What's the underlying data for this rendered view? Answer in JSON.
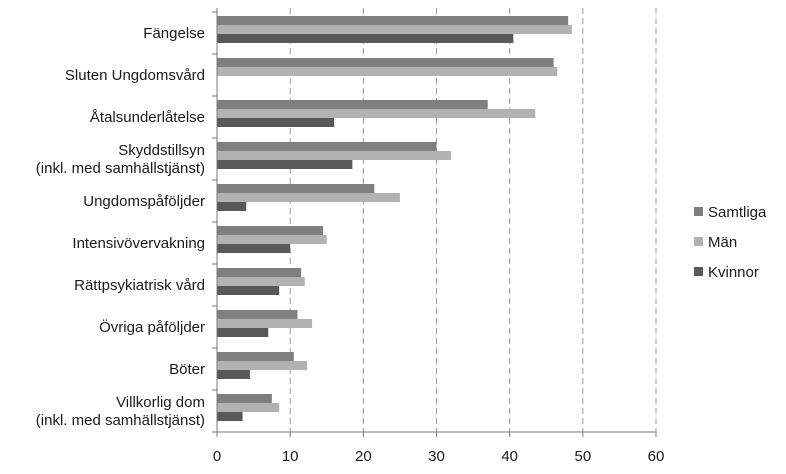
{
  "chart_data": {
    "type": "bar",
    "orientation": "horizontal",
    "categories": [
      [
        "Fängelse"
      ],
      [
        "Sluten Ungdomsvård"
      ],
      [
        "Åtalsunderlåtelse"
      ],
      [
        "Skyddstillsyn",
        "(inkl. med samhällstjänst)"
      ],
      [
        "Ungdomspåföljder"
      ],
      [
        "Intensivövervakning"
      ],
      [
        "Rättpsykiatrisk vård"
      ],
      [
        "Övriga påföljder"
      ],
      [
        "Böter"
      ],
      [
        "Villkorlig dom",
        "(inkl. med samhällstjänst)"
      ]
    ],
    "series": [
      {
        "name": "Samtliga",
        "color": "#7f7f7f",
        "values": [
          48,
          46,
          37,
          30,
          21.5,
          14.5,
          11.5,
          11,
          10.5,
          7.5
        ]
      },
      {
        "name": "Män",
        "color": "#b2b2b2",
        "values": [
          48.5,
          46.5,
          43.5,
          32,
          25,
          15,
          12,
          13,
          12.3,
          8.5
        ]
      },
      {
        "name": "Kvinnor",
        "color": "#595959",
        "values": [
          40.5,
          null,
          16,
          18.5,
          4,
          10,
          8.5,
          7,
          4.5,
          3.5
        ]
      }
    ],
    "xlim": [
      0,
      60
    ],
    "xticks": [
      0,
      10,
      20,
      30,
      40,
      50,
      60
    ],
    "grid": "vertical-dashed",
    "legend_position": "right"
  }
}
